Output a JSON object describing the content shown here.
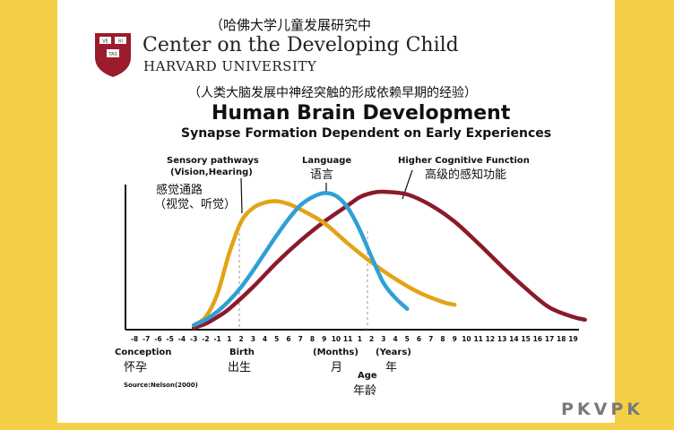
{
  "header": {
    "cn_title": "（哈佛大学儿童发展研究中",
    "center_name": "Center on the Developing Child",
    "university": "HARVARD UNIVERSITY",
    "logo_text": [
      "VE",
      "RI",
      "TAS"
    ]
  },
  "chart_data": {
    "type": "line",
    "cn_subtitle": "（人类大脑发展中神经突触的形成依赖早期的经验）",
    "title": "Human Brain Development",
    "subtitle": "Synapse Formation Dependent on Early Experiences",
    "x_ticks_months": [
      "-8",
      "-7",
      "-6",
      "-5",
      "-4",
      "-3",
      "-2",
      "-1",
      "1",
      "2",
      "3",
      "4",
      "5",
      "6",
      "7",
      "8",
      "9",
      "10",
      "11"
    ],
    "x_ticks_years": [
      "1",
      "2",
      "3",
      "4",
      "5",
      "6",
      "7",
      "8",
      "9",
      "10",
      "11",
      "12",
      "13",
      "14",
      "15",
      "16",
      "17",
      "18",
      "19"
    ],
    "xlabels": {
      "conception": "Conception",
      "conception_cn": "怀孕",
      "birth": "Birth",
      "birth_cn": "出生",
      "months": "(Months)",
      "months_cn": "月",
      "years": "(Years)",
      "years_cn": "年",
      "age": "Age",
      "age_cn": "年龄"
    },
    "source": "Source:Nelson(2000)",
    "series": [
      {
        "name": "Sensory pathways (Vision,Hearing)",
        "name_en_1": "Sensory pathways",
        "name_en_2": "(Vision,Hearing)",
        "name_cn_1": "感觉通路",
        "name_cn_2": "（视觉、听觉）",
        "color": "#e3a317",
        "points": [
          [
            -3,
            0.02
          ],
          [
            -2,
            0.08
          ],
          [
            -1,
            0.25
          ],
          [
            0,
            0.55
          ],
          [
            1,
            0.78
          ],
          [
            2,
            0.88
          ],
          [
            3,
            0.92
          ],
          [
            4,
            0.93
          ],
          [
            5,
            0.91
          ],
          [
            6,
            0.87
          ],
          [
            8,
            0.77
          ],
          [
            10,
            0.62
          ],
          [
            12,
            0.48
          ],
          [
            14,
            0.36
          ],
          [
            16,
            0.26
          ],
          [
            18,
            0.19
          ],
          [
            19,
            0.17
          ]
        ]
      },
      {
        "name": "Language",
        "name_en": "Language",
        "name_cn": "语言",
        "color": "#2fa0d6",
        "points": [
          [
            -3,
            0.02
          ],
          [
            -2,
            0.06
          ],
          [
            -1,
            0.12
          ],
          [
            0,
            0.2
          ],
          [
            1,
            0.3
          ],
          [
            2,
            0.42
          ],
          [
            3,
            0.55
          ],
          [
            4,
            0.68
          ],
          [
            5,
            0.8
          ],
          [
            6,
            0.9
          ],
          [
            7,
            0.96
          ],
          [
            8,
            0.99
          ],
          [
            9,
            0.97
          ],
          [
            10,
            0.88
          ],
          [
            11,
            0.72
          ],
          [
            12,
            0.52
          ],
          [
            13,
            0.33
          ],
          [
            14,
            0.22
          ],
          [
            15,
            0.14
          ]
        ]
      },
      {
        "name": "Higher Cognitive Function",
        "name_en": "Higher Cognitive Function",
        "name_cn": "高级的感知功能",
        "color": "#8b1a2b",
        "points": [
          [
            -3,
            0.0
          ],
          [
            -2,
            0.03
          ],
          [
            -1,
            0.08
          ],
          [
            0,
            0.14
          ],
          [
            2,
            0.3
          ],
          [
            4,
            0.48
          ],
          [
            6,
            0.64
          ],
          [
            8,
            0.78
          ],
          [
            10,
            0.9
          ],
          [
            11,
            0.96
          ],
          [
            12,
            0.99
          ],
          [
            13,
            1.0
          ],
          [
            15,
            0.98
          ],
          [
            17,
            0.9
          ],
          [
            19,
            0.78
          ],
          [
            21,
            0.62
          ],
          [
            23,
            0.45
          ],
          [
            25,
            0.29
          ],
          [
            27,
            0.15
          ],
          [
            29,
            0.08
          ],
          [
            30,
            0.06
          ]
        ]
      }
    ]
  },
  "watermark": "PKVPK"
}
